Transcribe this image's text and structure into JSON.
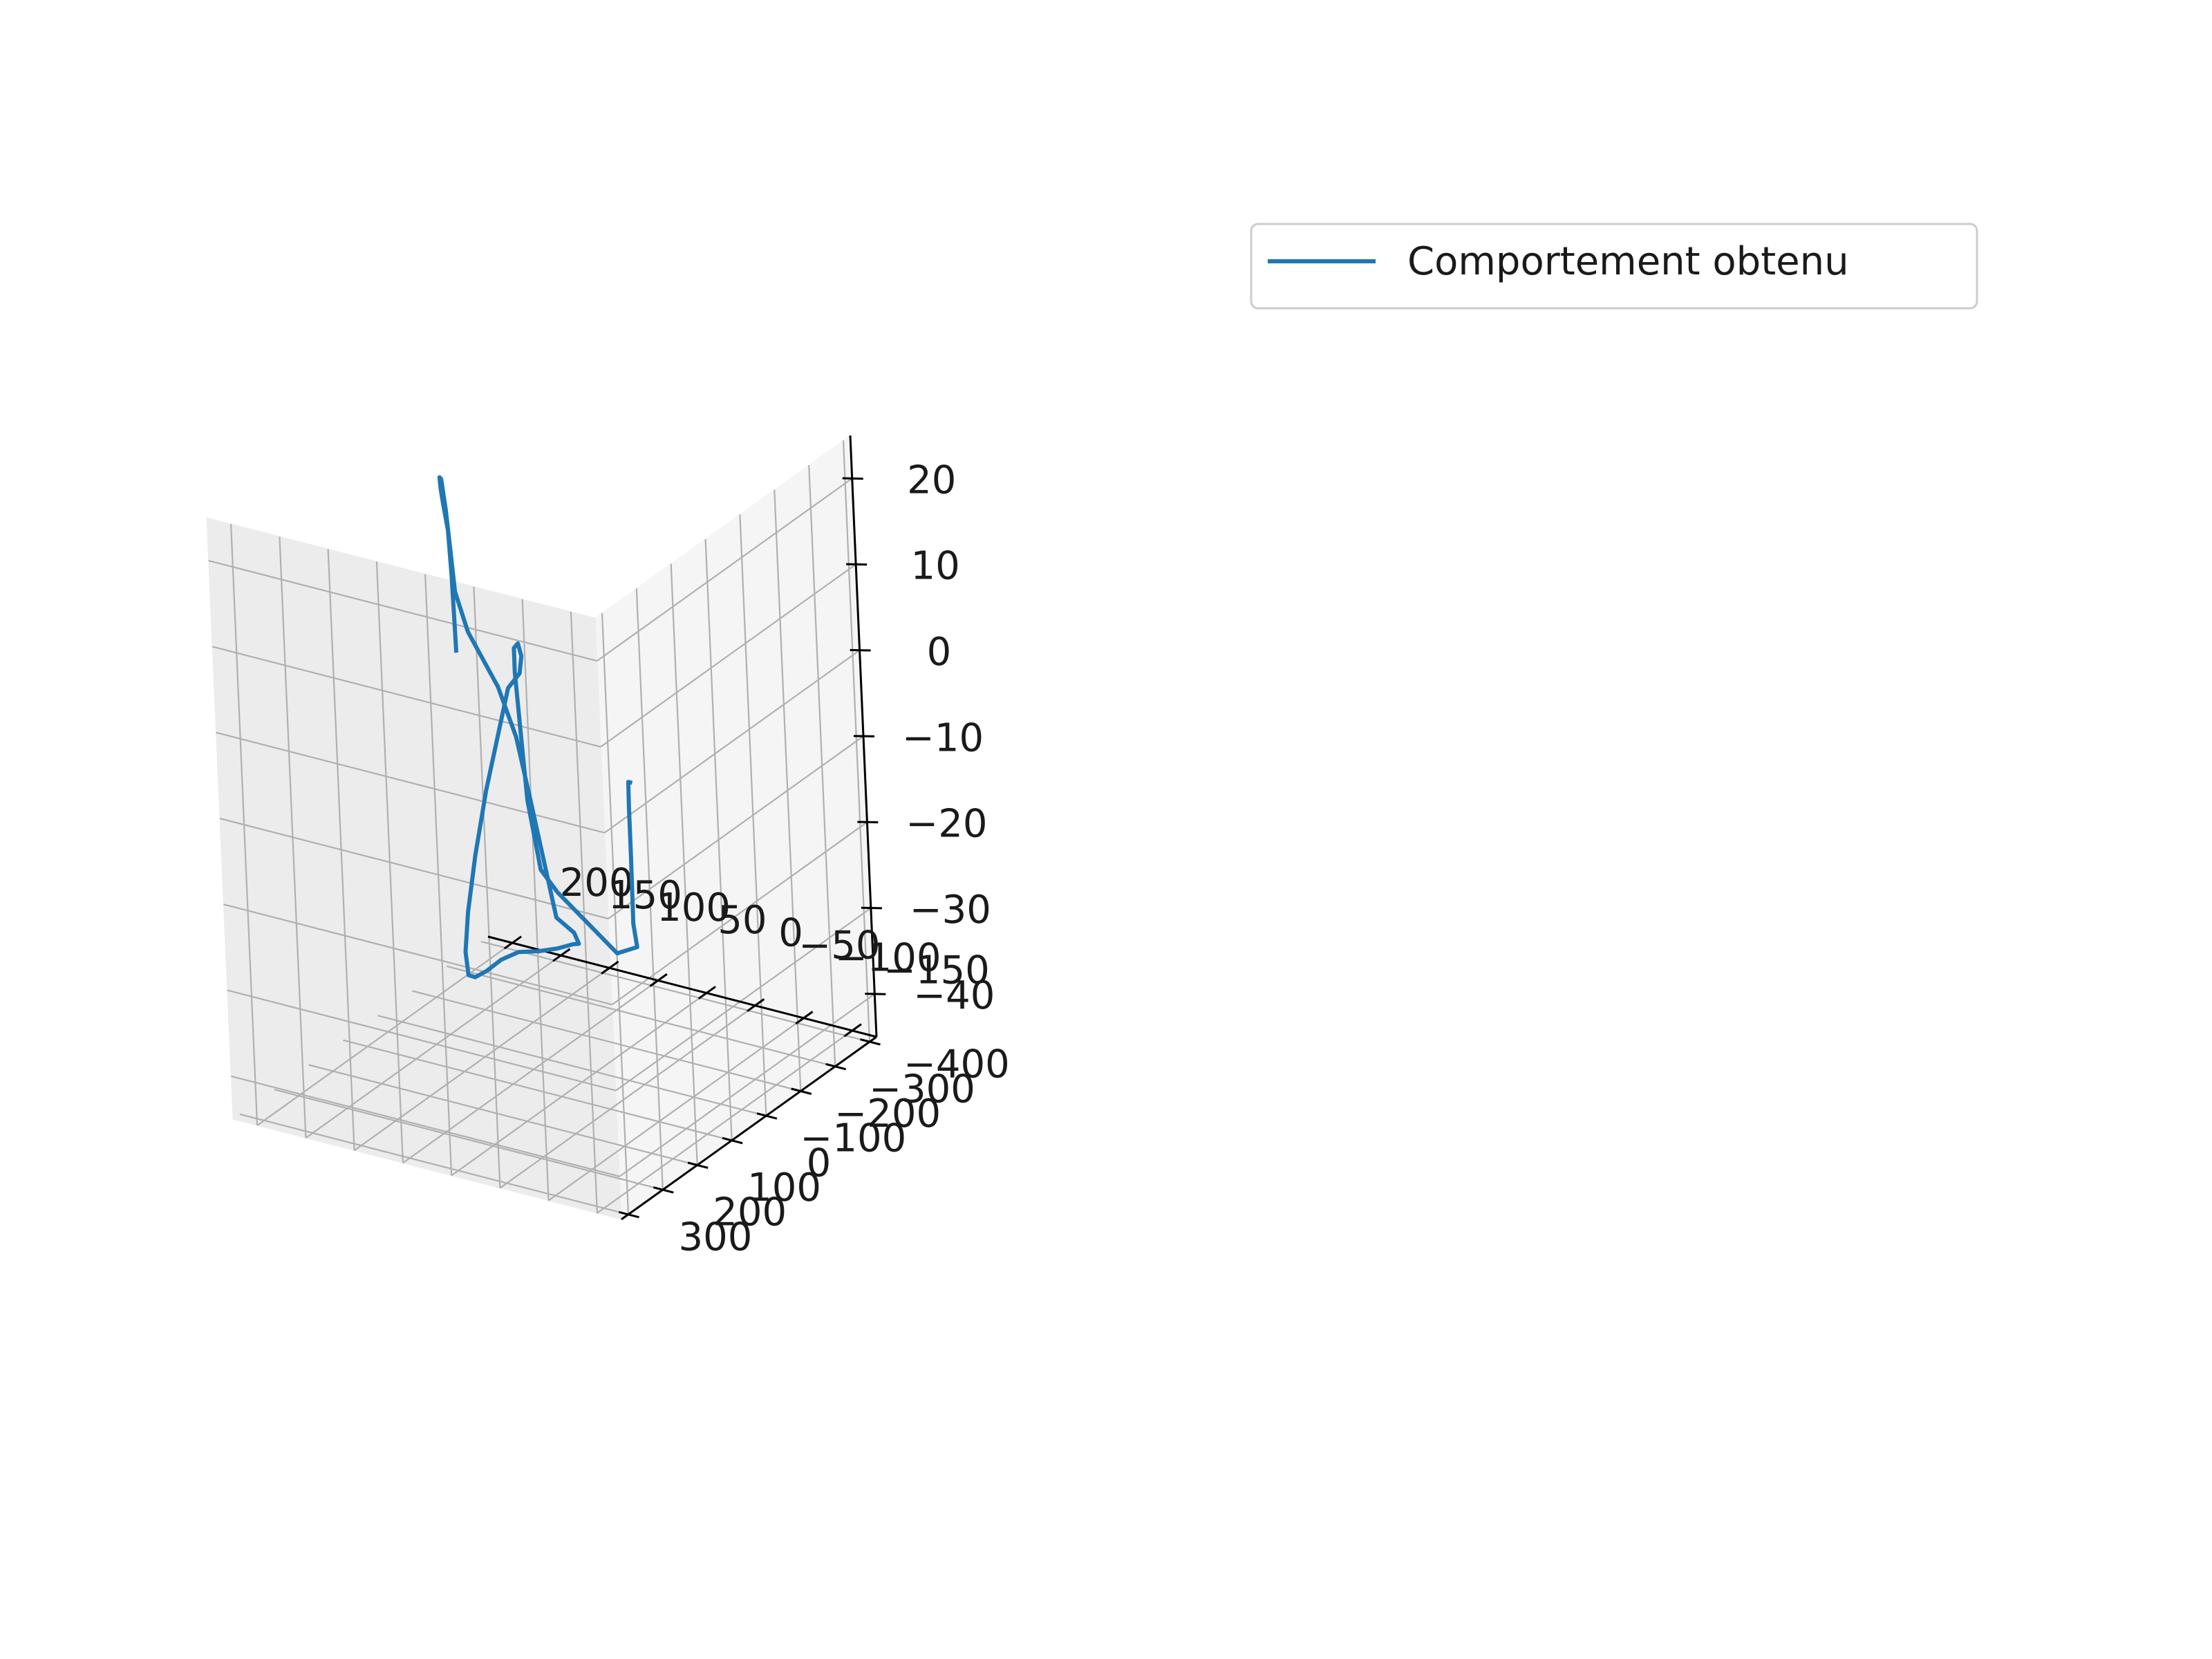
{
  "chart_data": {
    "type": "line",
    "projection": "3d",
    "title": "",
    "xlabel": "",
    "ylabel": "",
    "zlabel": "",
    "grid": true,
    "legend_position": "top-right",
    "xlim": [
      -175,
      225
    ],
    "ylim": [
      -420,
      320
    ],
    "zlim": [
      -45,
      25
    ],
    "x_ticks": [
      -150,
      -100,
      -50,
      0,
      50,
      100,
      150,
      200
    ],
    "x_tick_labels": [
      "−150",
      "−100",
      "−50",
      "0",
      "50",
      "100",
      "150",
      "200"
    ],
    "y_ticks": [
      -400,
      -300,
      -200,
      -100,
      0,
      100,
      200,
      300
    ],
    "y_tick_labels": [
      "−400",
      "−300",
      "−200",
      "−100",
      "0",
      "100",
      "200",
      "300"
    ],
    "z_ticks": [
      -40,
      -30,
      -20,
      -10,
      0,
      10,
      20
    ],
    "z_tick_labels": [
      "−40",
      "−30",
      "−20",
      "−10",
      "0",
      "10",
      "20"
    ],
    "series": [
      {
        "name": "Comportement obtenu",
        "color": "#1f77b4",
        "points": [
          [
            -99.1,
            31.1,
            -4.7
          ],
          [
            -89.5,
            16.1,
            -5.3
          ],
          [
            -83.8,
            1.8,
            -8.7
          ],
          [
            -79.2,
            -10.3,
            -15.0
          ],
          [
            -75.5,
            -18.5,
            -23.2
          ],
          [
            -67.6,
            -47.9,
            -27.0
          ],
          [
            -32.8,
            -85.0,
            -29.8
          ],
          [
            10.9,
            -128.1,
            -29.0
          ],
          [
            60.2,
            -175.5,
            -28.0
          ],
          [
            90.0,
            -212.0,
            -27.3
          ],
          [
            106.1,
            -226.5,
            -20.1
          ],
          [
            112.6,
            -235.8,
            -14.6
          ],
          [
            115.5,
            -231.9,
            -5.6
          ],
          [
            112.4,
            -224.1,
            -2.5
          ],
          [
            100.4,
            -203.2,
            -1.0
          ],
          [
            88.9,
            -180.6,
            -1.5
          ],
          [
            81.4,
            -153.3,
            -2.5
          ],
          [
            88.5,
            -138.2,
            -4.0
          ],
          [
            92.0,
            -120.0,
            -8.0
          ],
          [
            100.0,
            -95.0,
            -15.0
          ],
          [
            105.0,
            -70.0,
            -22.0
          ],
          [
            107.0,
            -48.0,
            -28.0
          ],
          [
            104.0,
            -28.0,
            -32.0
          ],
          [
            96.0,
            -12.0,
            -34.0
          ],
          [
            84.0,
            2.0,
            -33.5
          ],
          [
            68.0,
            12.0,
            -32.0
          ],
          [
            50.0,
            18.0,
            -30.0
          ],
          [
            31.0,
            20.0,
            -28.5
          ],
          [
            12.0,
            15.0,
            -28.0
          ],
          [
            -4.0,
            5.0,
            -27.5
          ],
          [
            -16.0,
            -7.0,
            -27.0
          ],
          [
            -20.0,
            -13.0,
            -27.0
          ],
          [
            -14.0,
            -17.0,
            -26.0
          ],
          [
            6.0,
            -23.0,
            -25.0
          ],
          [
            28.0,
            -24.0,
            -12.0
          ],
          [
            40.0,
            -24.0,
            -5.0
          ],
          [
            60.0,
            -33.0,
            0.0
          ],
          [
            94.0,
            -47.0,
            5.0
          ],
          [
            109.0,
            -56.0,
            9.0
          ],
          [
            114.0,
            -61.0,
            14.0
          ],
          [
            119.0,
            -67.0,
            18.0
          ],
          [
            126.0,
            -77.0,
            21.0
          ],
          [
            131.0,
            -86.0,
            20.8
          ],
          [
            133.0,
            -93.0,
            19.3
          ],
          [
            135.0,
            -103.0,
            17.3
          ],
          [
            137.5,
            -121.0,
            13.4
          ],
          [
            139.0,
            -129.5,
            8.1
          ],
          [
            138.0,
            -129.0,
            3.0
          ],
          [
            137.0,
            -128.0,
            -1.0
          ]
        ]
      }
    ]
  }
}
